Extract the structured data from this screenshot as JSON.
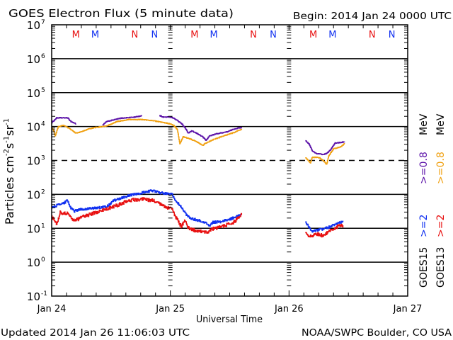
{
  "header": {
    "title": "GOES Electron Flux (5 minute data)",
    "begin": "Begin: 2014 Jan 24 0000 UTC"
  },
  "footer": {
    "updated": "Updated 2014 Jan 26 11:06:03 UTC",
    "credit": "NOAA/SWPC Boulder, CO USA"
  },
  "chart_data": {
    "type": "line",
    "title": "GOES Electron Flux (5 minute data)",
    "xlabel": "Universal Time",
    "ylabel": {
      "text": "Particles cm",
      "parts": [
        {
          "base": "cm",
          "exp": "-2"
        },
        {
          "base": "s",
          "exp": "-1"
        },
        {
          "base": "sr",
          "exp": "-1"
        }
      ],
      "prefix": "Particles "
    },
    "yscale": "log",
    "ylim": [
      0.1,
      10000000
    ],
    "xlim": [
      0,
      72
    ],
    "x_unit": "hours since 2014 Jan 24 0000 UTC",
    "grid": true,
    "x_ticks": [
      {
        "hour": 0,
        "label": "Jan 24"
      },
      {
        "hour": 24,
        "label": "Jan 25"
      },
      {
        "hour": 48,
        "label": "Jan 26"
      },
      {
        "hour": 72,
        "label": "Jan 27"
      }
    ],
    "x_minor_tick_hours": 3,
    "y_ticks": [
      {
        "value": 10000000,
        "base": "10",
        "exp": "7"
      },
      {
        "value": 1000000,
        "base": "10",
        "exp": "6"
      },
      {
        "value": 100000,
        "base": "10",
        "exp": "5"
      },
      {
        "value": 10000,
        "base": "10",
        "exp": "4"
      },
      {
        "value": 1000,
        "base": "10",
        "exp": "3"
      },
      {
        "value": 100,
        "base": "10",
        "exp": "2"
      },
      {
        "value": 10,
        "base": "10",
        "exp": "1"
      },
      {
        "value": 1,
        "base": "10",
        "exp": "0"
      },
      {
        "value": 0.1,
        "base": "10",
        "exp": "-1"
      }
    ],
    "gridlines": [
      {
        "value": 1000000,
        "style": "solid"
      },
      {
        "value": 100000,
        "style": "solid"
      },
      {
        "value": 10000,
        "style": "solid"
      },
      {
        "value": 1000,
        "style": "dashed"
      },
      {
        "value": 100,
        "style": "solid"
      },
      {
        "value": 10,
        "style": "solid"
      },
      {
        "value": 1,
        "style": "solid"
      }
    ],
    "satellite_colors": {
      "GOES13": "#e81010",
      "GOES15": "#1030f0"
    },
    "series": [
      {
        "name": "GOES15 >=0.8 MeV",
        "satellite": "GOES15",
        "energy": ">=0.8 MeV",
        "color": "#5b12a8",
        "points": [
          [
            0,
            13000
          ],
          [
            1.0,
            18000
          ],
          [
            3.2,
            18000
          ],
          [
            3.9,
            14000
          ],
          [
            4.9,
            12000
          ],
          [
            10.3,
            11000
          ],
          [
            11.1,
            14000
          ],
          [
            13.9,
            17500
          ],
          [
            16.8,
            19000
          ],
          [
            18.3,
            21000
          ],
          [
            21.8,
            21000
          ],
          [
            22.6,
            19000
          ],
          [
            24.0,
            19000
          ],
          [
            24.7,
            17500
          ],
          [
            26.2,
            12500
          ],
          [
            26.9,
            9400
          ],
          [
            27.6,
            6400
          ],
          [
            28.3,
            7400
          ],
          [
            29.5,
            6100
          ],
          [
            30.5,
            5000
          ],
          [
            31.2,
            3900
          ],
          [
            31.9,
            5300
          ],
          [
            33.3,
            6100
          ],
          [
            35.5,
            7000
          ],
          [
            36.9,
            8500
          ],
          [
            38.4,
            9400
          ],
          [
            51.3,
            3900
          ],
          [
            52.0,
            3100
          ],
          [
            52.7,
            1900
          ],
          [
            53.5,
            1600
          ],
          [
            54.9,
            1500
          ],
          [
            55.6,
            1600
          ],
          [
            56.3,
            2000
          ],
          [
            57.3,
            3250
          ],
          [
            58.5,
            3400
          ],
          [
            59.2,
            3600
          ]
        ]
      },
      {
        "name": "GOES13 >=0.8 MeV",
        "satellite": "GOES13",
        "energy": ">=0.8 MeV",
        "color": "#f0a010",
        "points": [
          [
            0,
            9400
          ],
          [
            0.4,
            7400
          ],
          [
            0.7,
            5300
          ],
          [
            1.3,
            9800
          ],
          [
            2.4,
            10800
          ],
          [
            3.9,
            8100
          ],
          [
            4.9,
            6400
          ],
          [
            6.0,
            7000
          ],
          [
            7.5,
            8500
          ],
          [
            8.9,
            9400
          ],
          [
            11.1,
            10300
          ],
          [
            13.2,
            14000
          ],
          [
            15.4,
            16000
          ],
          [
            18.3,
            16000
          ],
          [
            20.4,
            15000
          ],
          [
            22.6,
            13000
          ],
          [
            24.0,
            12000
          ],
          [
            24.7,
            10800
          ],
          [
            25.4,
            8100
          ],
          [
            25.9,
            3100
          ],
          [
            26.6,
            5000
          ],
          [
            27.6,
            4500
          ],
          [
            29.0,
            3750
          ],
          [
            30.5,
            2800
          ],
          [
            31.2,
            3250
          ],
          [
            32.6,
            4100
          ],
          [
            34.8,
            5300
          ],
          [
            36.9,
            6700
          ],
          [
            38.4,
            8500
          ],
          [
            51.3,
            1200
          ],
          [
            52.3,
            850
          ],
          [
            52.7,
            1250
          ],
          [
            54.2,
            1200
          ],
          [
            54.9,
            980
          ],
          [
            55.6,
            770
          ],
          [
            56.0,
            1370
          ],
          [
            57.0,
            2200
          ],
          [
            58.5,
            2550
          ],
          [
            59.2,
            3100
          ]
        ]
      },
      {
        "name": "GOES15 >=2 MeV",
        "satellite": "GOES15",
        "energy": ">=2 MeV",
        "color": "#1030f0",
        "points": [
          [
            0,
            41
          ],
          [
            1.0,
            47
          ],
          [
            2.4,
            54
          ],
          [
            3.2,
            69
          ],
          [
            3.6,
            43
          ],
          [
            4.6,
            32
          ],
          [
            5.3,
            35
          ],
          [
            8.2,
            39
          ],
          [
            11.1,
            43
          ],
          [
            12.5,
            66
          ],
          [
            14.7,
            84
          ],
          [
            16.8,
            102
          ],
          [
            19.0,
            117
          ],
          [
            20.4,
            129
          ],
          [
            21.8,
            112
          ],
          [
            23.3,
            107
          ],
          [
            24.3,
            100
          ],
          [
            25.1,
            66
          ],
          [
            26.2,
            41
          ],
          [
            27.2,
            25
          ],
          [
            28.3,
            19
          ],
          [
            30.5,
            16
          ],
          [
            31.9,
            12
          ],
          [
            32.6,
            15
          ],
          [
            34.1,
            15.5
          ],
          [
            36.2,
            19
          ],
          [
            38.4,
            25
          ],
          [
            51.3,
            14.9
          ],
          [
            52.0,
            11.1
          ],
          [
            52.7,
            8.0
          ],
          [
            54.9,
            9.6
          ],
          [
            56.3,
            11.1
          ],
          [
            57.8,
            14.1
          ],
          [
            58.9,
            15.5
          ]
        ]
      },
      {
        "name": "GOES13 >=2 MeV",
        "satellite": "GOES13",
        "energy": ">=2 MeV",
        "color": "#e81010",
        "points": [
          [
            0,
            21
          ],
          [
            0.6,
            18
          ],
          [
            1.0,
            12.9
          ],
          [
            1.7,
            29
          ],
          [
            3.2,
            27
          ],
          [
            4.6,
            16.5
          ],
          [
            6.0,
            21
          ],
          [
            8.2,
            27
          ],
          [
            11.1,
            37
          ],
          [
            13.2,
            47
          ],
          [
            15.4,
            66
          ],
          [
            18.3,
            73
          ],
          [
            20.4,
            66
          ],
          [
            22.6,
            45
          ],
          [
            24.3,
            37
          ],
          [
            25.1,
            21
          ],
          [
            26.2,
            11.1
          ],
          [
            26.9,
            16.5
          ],
          [
            27.6,
            10.1
          ],
          [
            29.7,
            8.0
          ],
          [
            31.2,
            7.6
          ],
          [
            32.6,
            9.6
          ],
          [
            34.8,
            11.6
          ],
          [
            36.9,
            15.5
          ],
          [
            38.4,
            25
          ],
          [
            51.3,
            7.6
          ],
          [
            52.0,
            5.4
          ],
          [
            53.5,
            6.9
          ],
          [
            54.9,
            6.0
          ],
          [
            56.3,
            8.4
          ],
          [
            57.8,
            11.1
          ],
          [
            58.9,
            12.2
          ]
        ]
      }
    ],
    "markers": [
      {
        "label": "M",
        "satellite": "GOES13",
        "hour": 4.9
      },
      {
        "label": "M",
        "satellite": "GOES15",
        "hour": 8.8
      },
      {
        "label": "N",
        "satellite": "GOES13",
        "hour": 16.8
      },
      {
        "label": "N",
        "satellite": "GOES15",
        "hour": 20.8
      },
      {
        "label": "M",
        "satellite": "GOES13",
        "hour": 28.9
      },
      {
        "label": "M",
        "satellite": "GOES15",
        "hour": 32.8
      },
      {
        "label": "N",
        "satellite": "GOES13",
        "hour": 40.8
      },
      {
        "label": "N",
        "satellite": "GOES15",
        "hour": 44.8
      },
      {
        "label": "M",
        "satellite": "GOES13",
        "hour": 52.9
      },
      {
        "label": "M",
        "satellite": "GOES15",
        "hour": 56.8
      },
      {
        "label": "N",
        "satellite": "GOES13",
        "hour": 64.8
      },
      {
        "label": "N",
        "satellite": "GOES15",
        "hour": 68.8
      }
    ],
    "legend": {
      "placement": "right",
      "columns": [
        {
          "satellite": "GOES15",
          "high": ">=2",
          "high_color": "#1030f0",
          "low": ">=0.8",
          "low_color": "#5b12a8",
          "unit": "MeV"
        },
        {
          "satellite": "GOES13",
          "high": ">=2",
          "high_color": "#e81010",
          "low": ">=0.8",
          "low_color": "#f0a010",
          "unit": "MeV"
        }
      ]
    }
  }
}
